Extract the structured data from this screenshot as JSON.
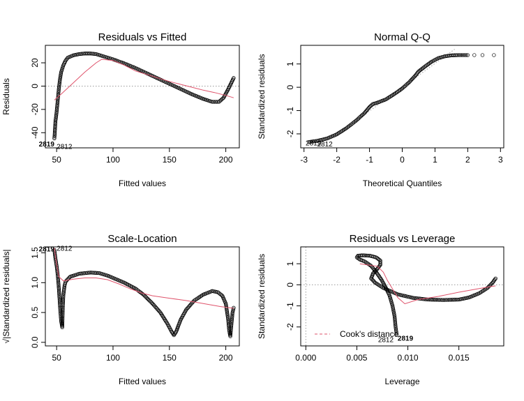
{
  "chart_data": [
    {
      "type": "scatter",
      "title": "Residuals vs Fitted",
      "xlabel": "Fitted values",
      "ylabel": "Residuals",
      "xlim": [
        40,
        212
      ],
      "ylim": [
        -53,
        35
      ],
      "xticks": [
        50,
        100,
        150,
        200
      ],
      "yticks": [
        -40,
        -20,
        0,
        20
      ],
      "ref_line": {
        "axis": "y",
        "value": 0,
        "style": "dotted"
      },
      "smoother_color": "#df536b",
      "curve": [
        [
          48,
          -45
        ],
        [
          48.5,
          -38
        ],
        [
          49,
          -30
        ],
        [
          50,
          -22
        ],
        [
          51,
          -12
        ],
        [
          52,
          -2
        ],
        [
          53,
          6
        ],
        [
          54,
          12
        ],
        [
          56,
          18
        ],
        [
          58,
          22
        ],
        [
          60,
          24.5
        ],
        [
          65,
          26.5
        ],
        [
          70,
          27.5
        ],
        [
          75,
          28
        ],
        [
          80,
          28
        ],
        [
          85,
          27.5
        ],
        [
          90,
          26
        ],
        [
          100,
          23
        ],
        [
          110,
          19.5
        ],
        [
          120,
          15.5
        ],
        [
          130,
          11
        ],
        [
          140,
          6.5
        ],
        [
          150,
          2
        ],
        [
          160,
          -2.5
        ],
        [
          170,
          -7
        ],
        [
          180,
          -11
        ],
        [
          188,
          -13.5
        ],
        [
          194,
          -13.5
        ],
        [
          198,
          -10
        ],
        [
          202,
          -3
        ],
        [
          205,
          3
        ],
        [
          207,
          7
        ]
      ],
      "smoother": [
        [
          48,
          -12
        ],
        [
          55,
          -6
        ],
        [
          65,
          3
        ],
        [
          75,
          12
        ],
        [
          85,
          20
        ],
        [
          90,
          23
        ],
        [
          100,
          22
        ],
        [
          110,
          18
        ],
        [
          120,
          13
        ],
        [
          130,
          10
        ],
        [
          140,
          7
        ],
        [
          150,
          4
        ],
        [
          160,
          1.5
        ],
        [
          170,
          -1
        ],
        [
          180,
          -3.5
        ],
        [
          190,
          -5.5
        ],
        [
          200,
          -8
        ],
        [
          207,
          -10
        ]
      ],
      "point_labels": [
        {
          "text": "2819",
          "x": 48,
          "y": -50,
          "bold": true,
          "side": "left"
        },
        {
          "text": "2812",
          "x": 50,
          "y": -52,
          "bold": false,
          "side": "right"
        }
      ]
    },
    {
      "type": "scatter",
      "title": "Normal Q-Q",
      "xlabel": "Theoretical Quantiles",
      "ylabel": "Standardized residuals",
      "xlim": [
        -3.1,
        3.1
      ],
      "ylim": [
        -2.6,
        1.8
      ],
      "xticks": [
        -3,
        -2,
        -1,
        0,
        1,
        2,
        3
      ],
      "yticks": [
        -2,
        -1,
        0,
        1
      ],
      "ref_line": {
        "axis": "diag",
        "slope": 1.02,
        "intercept": 0,
        "style": "dotted"
      },
      "curve": [
        [
          -2.85,
          -2.35
        ],
        [
          -2.6,
          -2.3
        ],
        [
          -2.3,
          -2.2
        ],
        [
          -2.0,
          -2.02
        ],
        [
          -1.7,
          -1.75
        ],
        [
          -1.4,
          -1.42
        ],
        [
          -1.15,
          -1.1
        ],
        [
          -1.0,
          -0.85
        ],
        [
          -0.9,
          -0.72
        ],
        [
          -0.8,
          -0.68
        ],
        [
          -0.5,
          -0.52
        ],
        [
          -0.2,
          -0.25
        ],
        [
          0,
          -0.05
        ],
        [
          0.2,
          0.2
        ],
        [
          0.4,
          0.5
        ],
        [
          0.5,
          0.68
        ],
        [
          0.7,
          0.9
        ],
        [
          0.9,
          1.1
        ],
        [
          1.1,
          1.25
        ],
        [
          1.3,
          1.33
        ],
        [
          1.5,
          1.37
        ],
        [
          1.7,
          1.38
        ],
        [
          2.0,
          1.38
        ]
      ],
      "extra_points": [
        [
          2.2,
          1.38
        ],
        [
          2.45,
          1.38
        ],
        [
          2.8,
          1.38
        ]
      ],
      "point_labels": [
        {
          "text": "2819",
          "x": -2.95,
          "y": -2.4,
          "bold": false,
          "side": "right"
        },
        {
          "text": "2812",
          "x": -2.6,
          "y": -2.45,
          "bold": false,
          "side": "right"
        }
      ]
    },
    {
      "type": "scatter",
      "title": "Scale-Location",
      "xlabel": "Fitted values",
      "ylabel": "√|Standardized residuals|",
      "xlim": [
        40,
        212
      ],
      "ylim": [
        -0.06,
        1.6
      ],
      "xticks": [
        50,
        100,
        150,
        200
      ],
      "yticks": [
        0.0,
        0.5,
        1.0,
        1.5
      ],
      "smoother_color": "#df536b",
      "curve": [
        [
          48,
          1.55
        ],
        [
          49,
          1.4
        ],
        [
          50,
          1.28
        ],
        [
          51,
          1.12
        ],
        [
          52,
          0.9
        ],
        [
          53,
          0.6
        ],
        [
          54,
          0.35
        ],
        [
          55,
          0.25
        ],
        [
          55.5,
          0.6
        ],
        [
          56,
          0.8
        ],
        [
          57,
          0.95
        ],
        [
          58,
          1.02
        ],
        [
          62,
          1.1
        ],
        [
          70,
          1.15
        ],
        [
          80,
          1.17
        ],
        [
          88,
          1.16
        ],
        [
          95,
          1.12
        ],
        [
          100,
          1.08
        ],
        [
          110,
          1.0
        ],
        [
          120,
          0.9
        ],
        [
          127,
          0.8
        ],
        [
          135,
          0.65
        ],
        [
          142,
          0.5
        ],
        [
          148,
          0.32
        ],
        [
          152,
          0.18
        ],
        [
          154,
          0.12
        ],
        [
          156,
          0.18
        ],
        [
          160,
          0.38
        ],
        [
          165,
          0.55
        ],
        [
          172,
          0.7
        ],
        [
          180,
          0.8
        ],
        [
          188,
          0.86
        ],
        [
          193,
          0.84
        ],
        [
          197,
          0.78
        ],
        [
          200,
          0.65
        ],
        [
          202,
          0.4
        ],
        [
          203,
          0.2
        ],
        [
          204,
          0.1
        ],
        [
          205,
          0.3
        ],
        [
          206,
          0.5
        ],
        [
          207,
          0.58
        ]
      ],
      "smoother": [
        [
          48,
          1.58
        ],
        [
          50,
          1.3
        ],
        [
          52,
          1.1
        ],
        [
          56,
          1.03
        ],
        [
          65,
          1.06
        ],
        [
          75,
          1.08
        ],
        [
          85,
          1.08
        ],
        [
          95,
          1.05
        ],
        [
          105,
          0.98
        ],
        [
          115,
          0.9
        ],
        [
          125,
          0.83
        ],
        [
          135,
          0.78
        ],
        [
          150,
          0.74
        ],
        [
          165,
          0.7
        ],
        [
          180,
          0.65
        ],
        [
          195,
          0.6
        ],
        [
          207,
          0.57
        ]
      ],
      "point_labels": [
        {
          "text": "2819",
          "x": 48,
          "y": 1.56,
          "bold": true,
          "side": "left"
        },
        {
          "text": "2812",
          "x": 50,
          "y": 1.57,
          "bold": false,
          "side": "right"
        }
      ]
    },
    {
      "type": "scatter",
      "title": "Residuals vs Leverage",
      "xlabel": "Leverage",
      "ylabel": "Standardized residuals",
      "xlim": [
        -0.0005,
        0.0194
      ],
      "ylim": [
        -2.9,
        1.8
      ],
      "xticks": [
        0.0,
        0.005,
        0.01,
        0.015
      ],
      "xtick_labels": [
        "0.000",
        "0.005",
        "0.010",
        "0.015"
      ],
      "yticks": [
        -2,
        -1,
        0,
        1
      ],
      "ref_lines": [
        {
          "axis": "x",
          "value": 0,
          "style": "dotted"
        },
        {
          "axis": "y",
          "value": 0,
          "style": "dotted"
        }
      ],
      "smoother_color": "#df536b",
      "curve": [
        [
          0.0089,
          -2.35
        ],
        [
          0.0088,
          -2.0
        ],
        [
          0.0087,
          -1.5
        ],
        [
          0.0085,
          -1.0
        ],
        [
          0.0082,
          -0.5
        ],
        [
          0.0078,
          -0.1
        ],
        [
          0.0074,
          0.25
        ],
        [
          0.0069,
          0.6
        ],
        [
          0.0064,
          0.9
        ],
        [
          0.0058,
          1.1
        ],
        [
          0.0053,
          1.2
        ],
        [
          0.005,
          1.3
        ],
        [
          0.0051,
          1.38
        ],
        [
          0.0056,
          1.4
        ],
        [
          0.0063,
          1.38
        ],
        [
          0.0069,
          1.3
        ],
        [
          0.0073,
          1.15
        ],
        [
          0.0073,
          0.95
        ],
        [
          0.007,
          0.75
        ],
        [
          0.0066,
          0.55
        ],
        [
          0.0064,
          0.3
        ],
        [
          0.0068,
          0.1
        ],
        [
          0.0076,
          -0.15
        ],
        [
          0.009,
          -0.45
        ],
        [
          0.0105,
          -0.62
        ],
        [
          0.012,
          -0.7
        ],
        [
          0.0135,
          -0.72
        ],
        [
          0.015,
          -0.7
        ],
        [
          0.016,
          -0.6
        ],
        [
          0.017,
          -0.4
        ],
        [
          0.0178,
          -0.15
        ],
        [
          0.0183,
          0.1
        ],
        [
          0.0186,
          0.3
        ]
      ],
      "smoother": [
        [
          0.0053,
          1.0
        ],
        [
          0.006,
          0.95
        ],
        [
          0.007,
          0.88
        ],
        [
          0.0076,
          0.6
        ],
        [
          0.008,
          0.2
        ],
        [
          0.0085,
          -0.2
        ],
        [
          0.009,
          -0.6
        ],
        [
          0.0097,
          -0.9
        ],
        [
          0.011,
          -0.7
        ],
        [
          0.013,
          -0.55
        ],
        [
          0.015,
          -0.35
        ],
        [
          0.017,
          -0.18
        ],
        [
          0.0186,
          -0.05
        ]
      ],
      "legend": {
        "label": "Cook's distance",
        "position": "bottom-left"
      },
      "point_labels": [
        {
          "text": "2812",
          "x": 0.0086,
          "y": -2.62,
          "bold": false,
          "side": "left"
        },
        {
          "text": "2819",
          "x": 0.009,
          "y": -2.55,
          "bold": true,
          "side": "right"
        }
      ]
    }
  ]
}
